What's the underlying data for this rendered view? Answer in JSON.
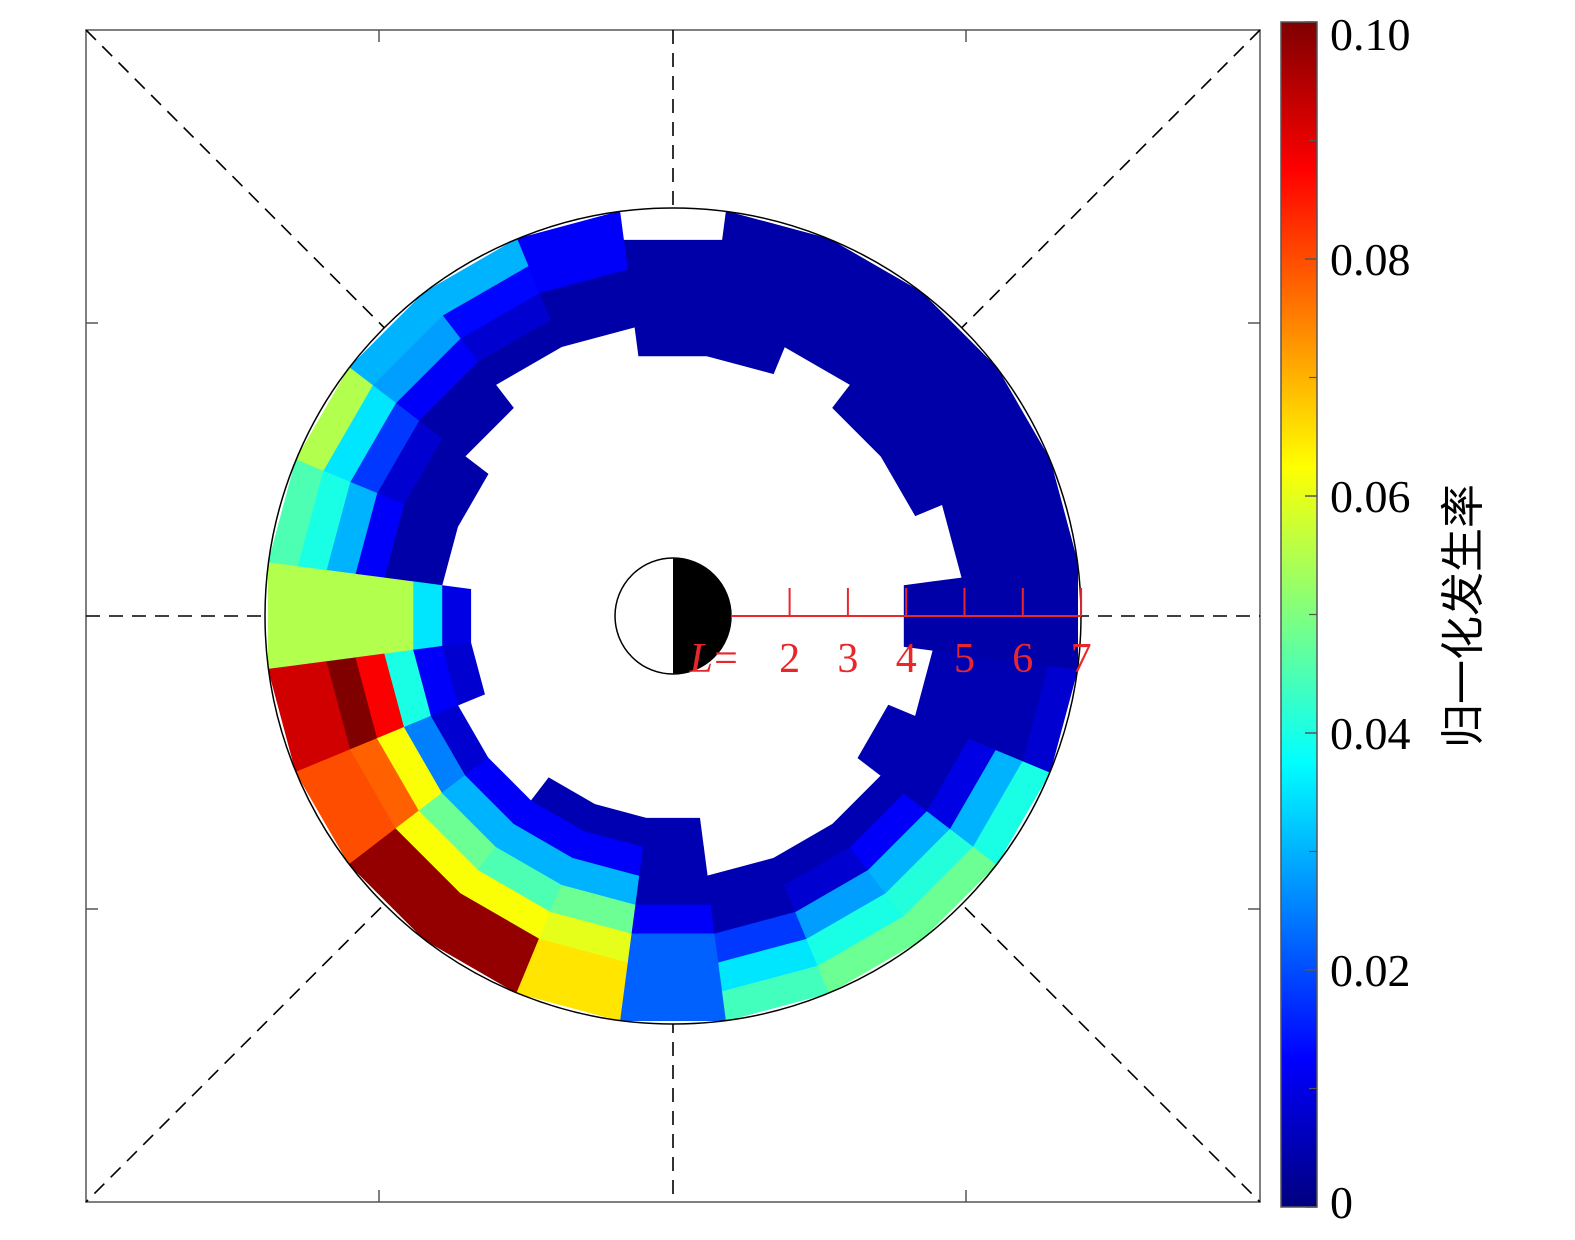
{
  "chart_data": {
    "type": "heatmap",
    "projection": "polar (L-shell vs MLT, dial plot)",
    "title": "",
    "r_axis": {
      "prefix_italic": "L",
      "prefix_eq": "=",
      "tick_labels": [
        "2",
        "3",
        "4",
        "5",
        "6",
        "7"
      ],
      "ticks": [
        2,
        3,
        4,
        5,
        6,
        7
      ],
      "range": [
        1,
        7
      ]
    },
    "radial_bins": [
      3.5,
      4.0,
      4.5,
      5.0,
      5.5,
      6.0,
      6.5,
      7.0
    ],
    "mlt_bin_hours": 1,
    "mlt_start": 0,
    "earth": {
      "dayside": "white",
      "nightside": "black"
    },
    "colorbar": {
      "label": "归一化发生率",
      "min": 0,
      "max": 0.1,
      "tick_labels": [
        "0.10",
        "0.08",
        "0.06",
        "0.04",
        "0.02",
        "0"
      ],
      "ticks": [
        0.1,
        0.08,
        0.06,
        0.04,
        0.02,
        0
      ],
      "colormap": "jet"
    },
    "values": [
      [
        0.005,
        0.005,
        0.005,
        0.012,
        0.022,
        0.022,
        0.022
      ],
      [
        null,
        null,
        0.005,
        0.005,
        0.018,
        0.035,
        0.044
      ],
      [
        null,
        null,
        0.005,
        0.008,
        0.028,
        0.04,
        0.048
      ],
      [
        null,
        null,
        0.005,
        0.012,
        0.03,
        0.041,
        0.048
      ],
      [
        null,
        0.005,
        0.005,
        0.005,
        0.01,
        0.03,
        0.04
      ],
      [
        null,
        null,
        0.005,
        0.005,
        0.005,
        0.005,
        0.008
      ],
      [
        null,
        0.004,
        0.004,
        0.004,
        0.004,
        0.004,
        0.004
      ],
      [
        null,
        null,
        null,
        0.004,
        0.004,
        0.004,
        0.004
      ],
      [
        null,
        null,
        0.004,
        0.004,
        0.004,
        0.004,
        0.004
      ],
      [
        null,
        null,
        0.004,
        0.004,
        0.004,
        0.004,
        0.004
      ],
      [
        null,
        null,
        null,
        0.004,
        0.004,
        0.004,
        0.004
      ],
      [
        null,
        null,
        0.004,
        0.004,
        0.004,
        0.004,
        0.004
      ],
      [
        null,
        null,
        0.004,
        0.004,
        0.004,
        0.004,
        null
      ],
      [
        null,
        null,
        null,
        0.004,
        0.004,
        0.012,
        0.012
      ],
      [
        null,
        null,
        null,
        0.004,
        0.008,
        0.013,
        0.03
      ],
      [
        null,
        null,
        0.004,
        0.004,
        0.012,
        0.028,
        0.03
      ],
      [
        null,
        0.004,
        0.004,
        0.008,
        0.018,
        0.035,
        0.055
      ],
      [
        null,
        0.004,
        0.004,
        0.012,
        0.03,
        0.04,
        0.045
      ],
      [
        0.01,
        0.035,
        0.055,
        0.055,
        0.055,
        0.055,
        0.055
      ],
      [
        0.008,
        0.012,
        0.04,
        0.088,
        0.1,
        0.092,
        0.092
      ],
      [
        null,
        0.008,
        0.025,
        0.062,
        0.078,
        0.08,
        0.08
      ],
      [
        null,
        0.012,
        0.03,
        0.048,
        0.062,
        0.098,
        0.098
      ],
      [
        0.005,
        0.012,
        0.03,
        0.045,
        0.062,
        0.098,
        0.098
      ],
      [
        0.005,
        0.012,
        0.03,
        0.048,
        0.06,
        0.065,
        0.065
      ]
    ]
  }
}
